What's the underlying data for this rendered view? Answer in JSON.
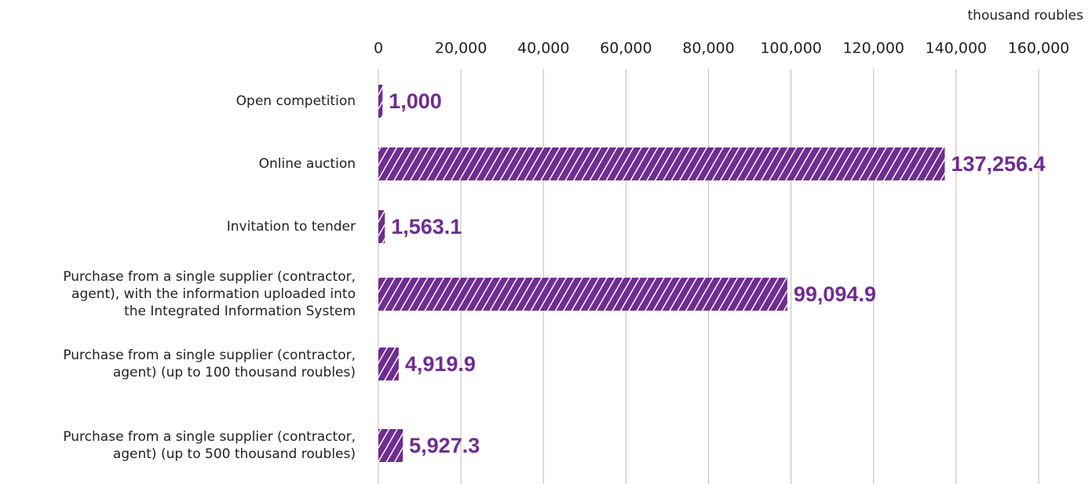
{
  "chart_data": {
    "type": "hbar",
    "axis_label": "thousand roubles",
    "categories": [
      "Open competition",
      "Online auction",
      "Invitation to tender",
      "Purchase from a single supplier (contractor,\nagent), with the information uploaded into\nthe Integrated Information System",
      "Purchase from a single supplier (contractor,\nagent) (up to 100 thousand roubles)",
      "Purchase from a single supplier (contractor,\nagent) (up to 500 thousand roubles)"
    ],
    "values": [
      1000,
      137256.4,
      1563.1,
      99094.9,
      4919.9,
      5927.3
    ],
    "value_labels": [
      "1,000",
      "137,256.4",
      "1,563.1",
      "99,094.9",
      "4,919.9",
      "5,927.3"
    ],
    "color": "#6f2c91",
    "hatched": true,
    "xlim": [
      0,
      160000
    ],
    "xticks": [
      0,
      {
        "value": 20000,
        "label": "20,000"
      },
      {
        "value": 40000,
        "label": "40,000"
      },
      {
        "value": 60000,
        "label": "60,000"
      },
      {
        "value": 80000,
        "label": "80,000"
      },
      {
        "value": 100000,
        "label": "100,000"
      },
      {
        "value": 120000,
        "label": "120,000"
      },
      {
        "value": 140000,
        "label": "140,000"
      },
      {
        "value": 160000,
        "label": "160,000"
      }
    ],
    "grid": true
  }
}
